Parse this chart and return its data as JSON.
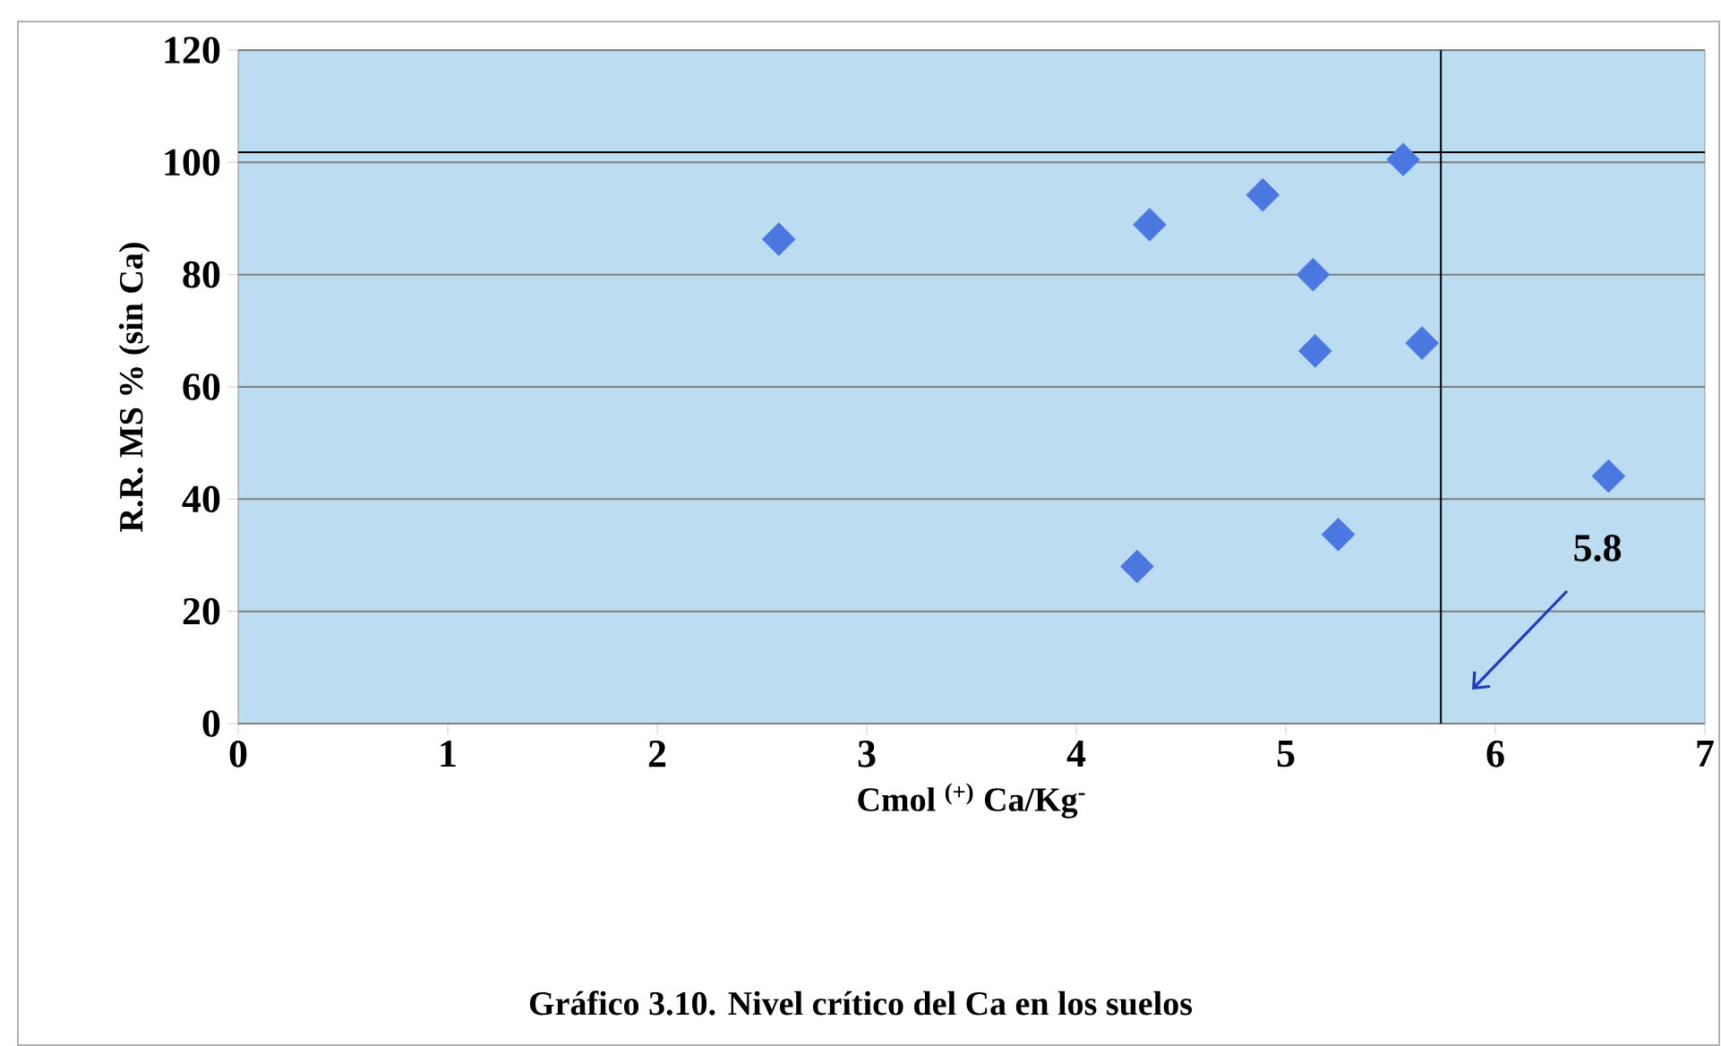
{
  "chart_data": {
    "type": "scatter",
    "title": "Gráfico 3.10. Nivel crítico del Ca en los suelos",
    "xlabel": "Cmol $^{(+)}$ Ca/Kg$^{-}$",
    "ylabel": "R.R. MS % (sin Ca)",
    "series": [
      {
        "color": "#4a78e0",
        "x": [
          2.58,
          4.35,
          4.89,
          5.56,
          5.13,
          5.14,
          5.65,
          6.54,
          5.25,
          4.29
        ],
        "values": [
          86.3,
          88.9,
          94.2,
          100.5,
          80.0,
          66.4,
          67.8,
          44.1,
          33.7,
          28.0
        ]
      }
    ],
    "marker": "diamond",
    "grid": "y",
    "xlim": [
      0,
      7
    ],
    "xticks": [
      0,
      1,
      2,
      3,
      4,
      5,
      6,
      7
    ],
    "ylim": [
      0,
      120
    ],
    "yticks": [
      0,
      20,
      40,
      60,
      80,
      100,
      120
    ],
    "ref_lines": [
      {
        "axis": "y",
        "value": 101.8,
        "color": "#000000"
      },
      {
        "axis": "x",
        "value": 5.74,
        "color": "#000000"
      }
    ],
    "annotations": [
      "5.8"
    ]
  }
}
